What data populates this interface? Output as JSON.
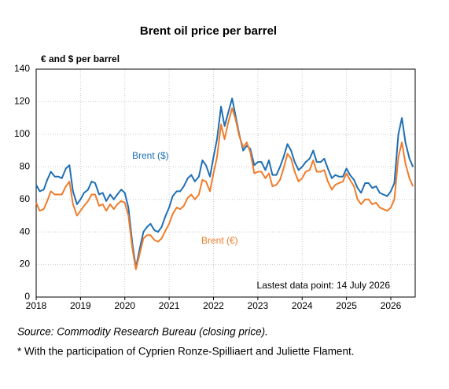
{
  "chart_data": {
    "type": "line",
    "title": "Brent oil price per barrel",
    "y_label": "€ and $ per barrel",
    "x": [
      2018,
      2018.08,
      2018.17,
      2018.25,
      2018.33,
      2018.42,
      2018.5,
      2018.58,
      2018.67,
      2018.75,
      2018.83,
      2018.92,
      2019,
      2019.08,
      2019.17,
      2019.25,
      2019.33,
      2019.42,
      2019.5,
      2019.58,
      2019.67,
      2019.75,
      2019.83,
      2019.92,
      2020,
      2020.08,
      2020.17,
      2020.25,
      2020.33,
      2020.42,
      2020.5,
      2020.58,
      2020.67,
      2020.75,
      2020.83,
      2020.92,
      2021,
      2021.08,
      2021.17,
      2021.25,
      2021.33,
      2021.42,
      2021.5,
      2021.58,
      2021.67,
      2021.75,
      2021.83,
      2021.92,
      2022,
      2022.08,
      2022.17,
      2022.25,
      2022.33,
      2022.42,
      2022.5,
      2022.58,
      2022.67,
      2022.75,
      2022.83,
      2022.92,
      2023,
      2023.08,
      2023.17,
      2023.25,
      2023.33,
      2023.42,
      2023.5,
      2023.58,
      2023.67,
      2023.75,
      2023.83,
      2023.92,
      2024,
      2024.08,
      2024.17,
      2024.25,
      2024.33,
      2024.42,
      2024.5,
      2024.58,
      2024.67,
      2024.75,
      2024.83,
      2024.92,
      2025,
      2025.08,
      2025.17,
      2025.25,
      2025.33,
      2025.42,
      2025.5,
      2025.58,
      2025.67,
      2025.75,
      2025.83,
      2025.92,
      2026,
      2026.08,
      2026.17,
      2026.25,
      2026.33,
      2026.42,
      2026.5
    ],
    "series": [
      {
        "name": "Brent ($)",
        "color": "#1f6fb4",
        "values": [
          69,
          65,
          66,
          72,
          77,
          74,
          74,
          73,
          79,
          81,
          65,
          57,
          60,
          64,
          66,
          71,
          70,
          63,
          64,
          59,
          63,
          60,
          63,
          66,
          64,
          55,
          33,
          18,
          29,
          40,
          43,
          45,
          41,
          40,
          43,
          50,
          55,
          62,
          65,
          65,
          68,
          73,
          75,
          71,
          74,
          84,
          81,
          74,
          86,
          97,
          117,
          105,
          113,
          122,
          111,
          100,
          90,
          93,
          91,
          81,
          83,
          83,
          78,
          84,
          75,
          75,
          80,
          86,
          94,
          90,
          83,
          78,
          80,
          83,
          85,
          90,
          83,
          83,
          85,
          79,
          73,
          75,
          74,
          74,
          79,
          75,
          72,
          67,
          64,
          70,
          70,
          67,
          68,
          64,
          63,
          62,
          65,
          70,
          100,
          110,
          95,
          85,
          80
        ]
      },
      {
        "name": "Brent (€)",
        "color": "#f07c2b",
        "values": [
          58,
          53,
          54,
          59,
          65,
          63,
          63,
          63,
          68,
          71,
          57,
          50,
          53,
          56,
          59,
          63,
          63,
          56,
          57,
          53,
          57,
          54,
          57,
          59,
          58,
          50,
          30,
          17,
          26,
          36,
          38,
          38,
          35,
          34,
          36,
          41,
          45,
          51,
          55,
          54,
          56,
          61,
          63,
          60,
          63,
          72,
          71,
          65,
          76,
          86,
          106,
          97,
          107,
          116,
          109,
          99,
          92,
          95,
          89,
          76,
          77,
          77,
          73,
          76,
          68,
          69,
          72,
          79,
          88,
          85,
          77,
          71,
          73,
          77,
          78,
          84,
          77,
          77,
          78,
          71,
          66,
          69,
          70,
          71,
          76,
          72,
          68,
          60,
          57,
          60,
          60,
          57,
          58,
          55,
          54,
          53,
          55,
          60,
          86,
          95,
          82,
          73,
          68
        ]
      }
    ],
    "xlim": [
      2018,
      2026.55
    ],
    "xticks": [
      2018,
      2019,
      2020,
      2021,
      2022,
      2023,
      2024,
      2025,
      2026
    ],
    "ylim": [
      0,
      140
    ],
    "yticks": [
      0,
      20,
      40,
      60,
      80,
      100,
      120,
      140
    ],
    "grid": true,
    "annotation": "Lastest data point: 14 July 2026",
    "source": "Source: Commodity Research Bureau (closing price).",
    "footnote": "* With the participation of Cyprien Ronze-Spilliaert and Juliette Flament."
  }
}
